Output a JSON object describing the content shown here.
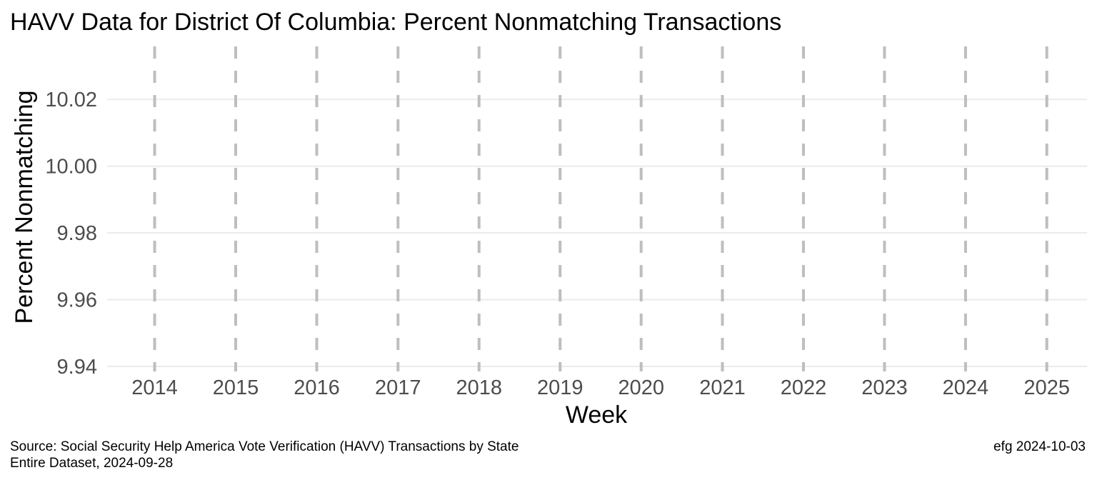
{
  "chart_data": {
    "type": "line",
    "title": "HAVV Data for District Of Columbia:  Percent Nonmatching Transactions",
    "xlabel": "Week",
    "ylabel": "Percent Nonmatching",
    "x_type": "date",
    "x_tick_labels": [
      "2014",
      "2015",
      "2016",
      "2017",
      "2018",
      "2019",
      "2020",
      "2021",
      "2022",
      "2023",
      "2024",
      "2025"
    ],
    "xlim": [
      "2013-06-01",
      "2025-07-01"
    ],
    "y_ticks": [
      9.94,
      9.96,
      9.98,
      10.0,
      10.02
    ],
    "y_tick_labels": [
      "9.94",
      "9.96",
      "9.98",
      "10.00",
      "10.02"
    ],
    "ylim": [
      9.9385,
      10.0365
    ],
    "year_boundary_lines": [
      "2014-01-01",
      "2015-01-01",
      "2016-01-01",
      "2017-01-01",
      "2018-01-01",
      "2019-01-01",
      "2020-01-01",
      "2021-01-01",
      "2022-01-01",
      "2023-01-01",
      "2024-01-01",
      "2025-01-01"
    ],
    "year_line_style": "dashed",
    "year_line_color": "#bebebe",
    "grid": "horizontal",
    "legend": "none",
    "series": []
  },
  "caption": {
    "source_line1": "Source:  Social Security Help America Vote Verification (HAVV) Transactions by State",
    "source_line2": "Entire Dataset, 2024-09-28",
    "credit": "efg 2024-10-03"
  }
}
